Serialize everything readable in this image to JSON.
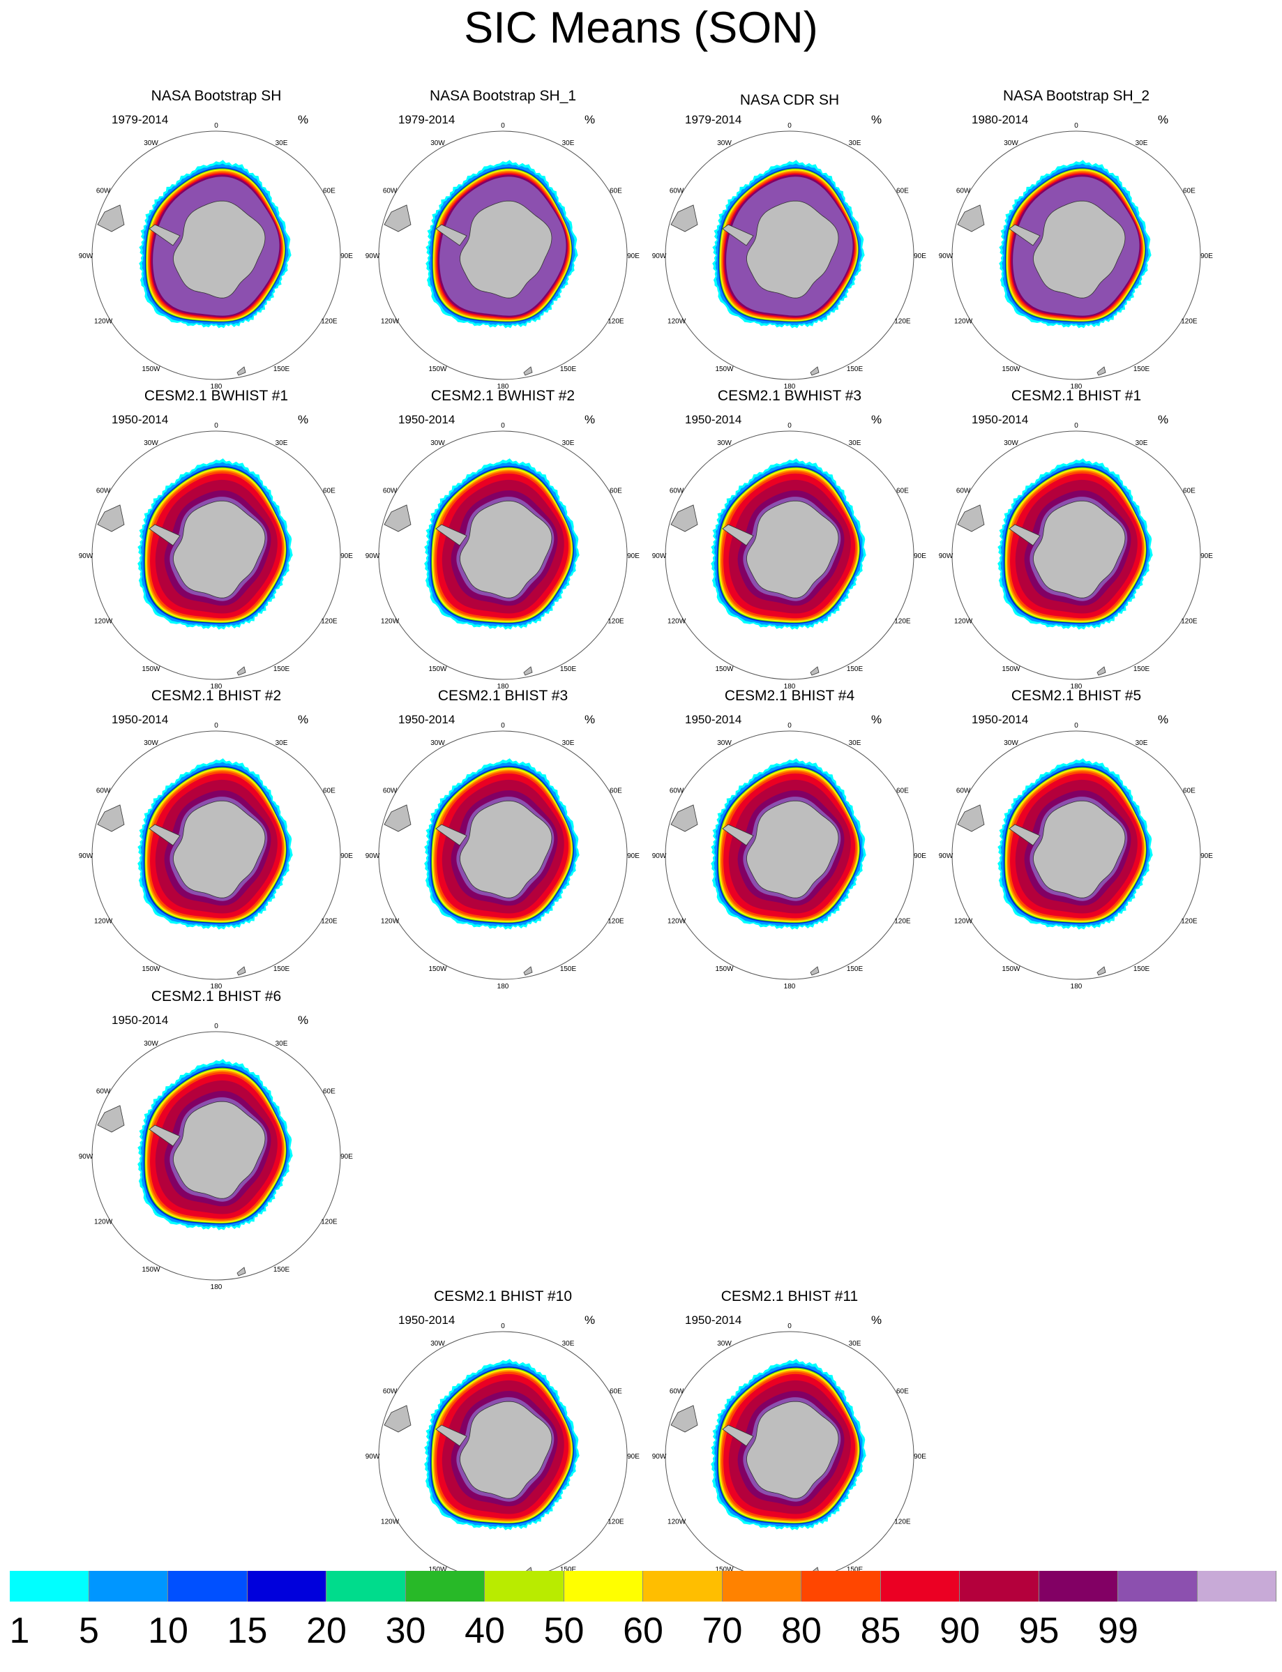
{
  "title": "SIC Means (SON)",
  "unit": "%",
  "lon_labels": [
    "0",
    "30E",
    "60E",
    "90E",
    "120E",
    "150E",
    "180",
    "150W",
    "120W",
    "90W",
    "60W",
    "30W"
  ],
  "panels": [
    {
      "title": "NASA Bootstrap SH",
      "period": "1979-2014",
      "kind": "obs"
    },
    {
      "title": "NASA Bootstrap SH_1",
      "period": "1979-2014",
      "kind": "obs"
    },
    {
      "title": "NASA CDR SH",
      "period": "1979-2014",
      "kind": "obs"
    },
    {
      "title": "NASA Bootstrap SH_2",
      "period": "1980-2014",
      "kind": "obs"
    },
    {
      "title": "CESM2.1 BWHIST #1",
      "period": "1950-2014",
      "kind": "model"
    },
    {
      "title": "CESM2.1 BWHIST #2",
      "period": "1950-2014",
      "kind": "model"
    },
    {
      "title": "CESM2.1 BWHIST #3",
      "period": "1950-2014",
      "kind": "model"
    },
    {
      "title": "CESM2.1 BHIST #1",
      "period": "1950-2014",
      "kind": "model"
    },
    {
      "title": "CESM2.1 BHIST #2",
      "period": "1950-2014",
      "kind": "model"
    },
    {
      "title": "CESM2.1 BHIST #3",
      "period": "1950-2014",
      "kind": "model"
    },
    {
      "title": "CESM2.1 BHIST #4",
      "period": "1950-2014",
      "kind": "model"
    },
    {
      "title": "CESM2.1 BHIST #5",
      "period": "1950-2014",
      "kind": "model"
    },
    {
      "title": "CESM2.1 BHIST #6",
      "period": "1950-2014",
      "kind": "model"
    },
    {
      "title": "CESM2.1 BHIST #10",
      "period": "1950-2014",
      "kind": "model"
    },
    {
      "title": "CESM2.1 BHIST #11",
      "period": "1950-2014",
      "kind": "model"
    }
  ],
  "colorbar": {
    "labels": [
      "1",
      "5",
      "10",
      "15",
      "20",
      "30",
      "40",
      "50",
      "60",
      "70",
      "80",
      "85",
      "90",
      "95",
      "99"
    ],
    "colors": [
      "#00ffff",
      "#0096ff",
      "#0050ff",
      "#0000dc",
      "#00dc8c",
      "#28b928",
      "#b9eb00",
      "#ffff00",
      "#ffbe00",
      "#ff8200",
      "#ff4600",
      "#eb0023",
      "#b4003c",
      "#820064",
      "#8c50af",
      "#c8aad7"
    ],
    "land_color": "#bebebe"
  }
}
